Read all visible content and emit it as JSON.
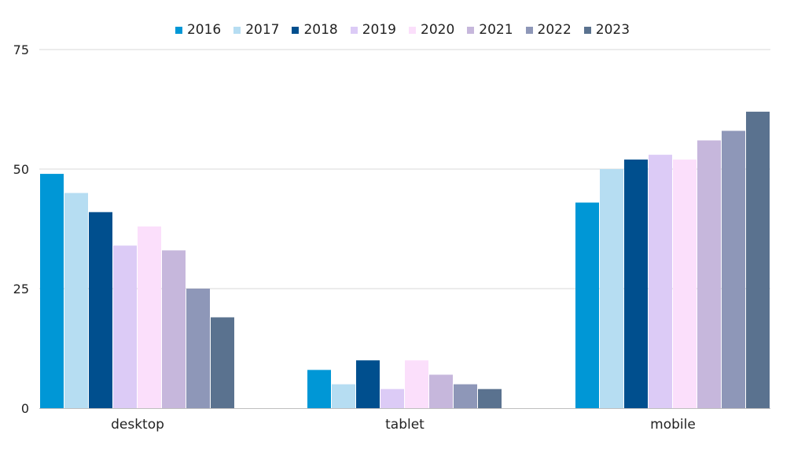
{
  "chart_data": {
    "type": "bar",
    "categories": [
      "desktop",
      "tablet",
      "mobile"
    ],
    "series": [
      {
        "name": "2016",
        "color": "#0097d6",
        "values": [
          49,
          8,
          43
        ]
      },
      {
        "name": "2017",
        "color": "#b6ddf2",
        "values": [
          45,
          5,
          50
        ]
      },
      {
        "name": "2018",
        "color": "#004f8e",
        "values": [
          41,
          10,
          52
        ]
      },
      {
        "name": "2019",
        "color": "#dccbf6",
        "values": [
          34,
          4,
          53
        ]
      },
      {
        "name": "2020",
        "color": "#fbdffb",
        "values": [
          38,
          10,
          52
        ]
      },
      {
        "name": "2021",
        "color": "#c6b7dc",
        "values": [
          33,
          7,
          56
        ]
      },
      {
        "name": "2022",
        "color": "#8e97b8",
        "values": [
          25,
          5,
          58
        ]
      },
      {
        "name": "2023",
        "color": "#5a728f",
        "values": [
          19,
          4,
          62
        ]
      }
    ],
    "yticks": [
      "0",
      "25",
      "50",
      "75"
    ],
    "ylim": [
      0,
      75
    ],
    "grid": true,
    "legend_position": "top"
  }
}
